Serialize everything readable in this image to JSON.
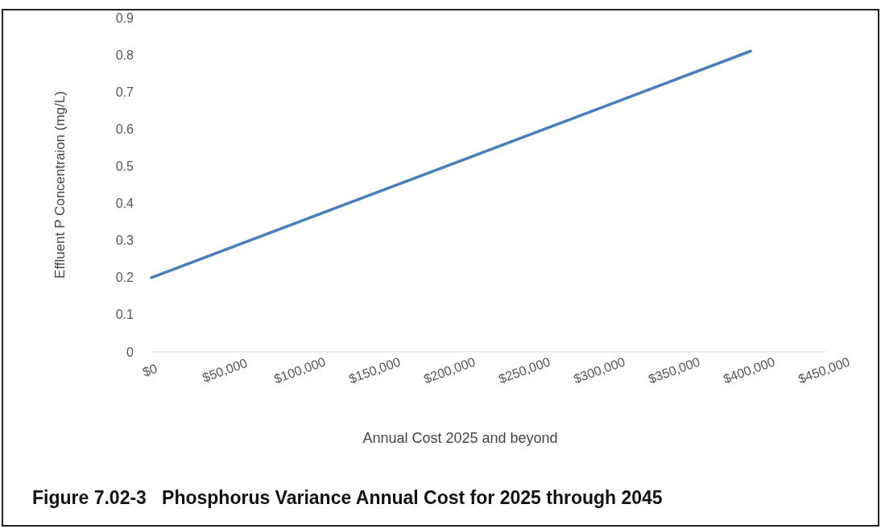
{
  "chart_data": {
    "type": "line",
    "title": "Figure 7.02-3   Phosphorus Variance Annual Cost for 2025 through 2045",
    "xlabel": "Annual Cost 2025 and beyond",
    "ylabel": "Effluent P Concentraion (mg/L)",
    "x": [
      0,
      400000
    ],
    "series": [
      {
        "color": "#4a7ebb",
        "values": [
          0.2,
          0.81
        ]
      }
    ],
    "xlim": [
      0,
      450000
    ],
    "xticks": [
      {
        "value": 0,
        "label": "$0"
      },
      {
        "value": 50000,
        "label": "$50,000"
      },
      {
        "value": 100000,
        "label": "$100,000"
      },
      {
        "value": 150000,
        "label": "$150,000"
      },
      {
        "value": 200000,
        "label": "$200,000"
      },
      {
        "value": 250000,
        "label": "$250,000"
      },
      {
        "value": 300000,
        "label": "$300,000"
      },
      {
        "value": 350000,
        "label": "$350,000"
      },
      {
        "value": 400000,
        "label": "$400,000"
      },
      {
        "value": 450000,
        "label": "$450,000"
      }
    ],
    "ylim": [
      0,
      0.9
    ],
    "yticks": [
      0,
      0.1,
      0.2,
      0.3,
      0.4,
      0.5,
      0.6,
      0.7,
      0.8,
      0.9
    ],
    "marker": "none",
    "line_style": "solid",
    "grid": false
  }
}
